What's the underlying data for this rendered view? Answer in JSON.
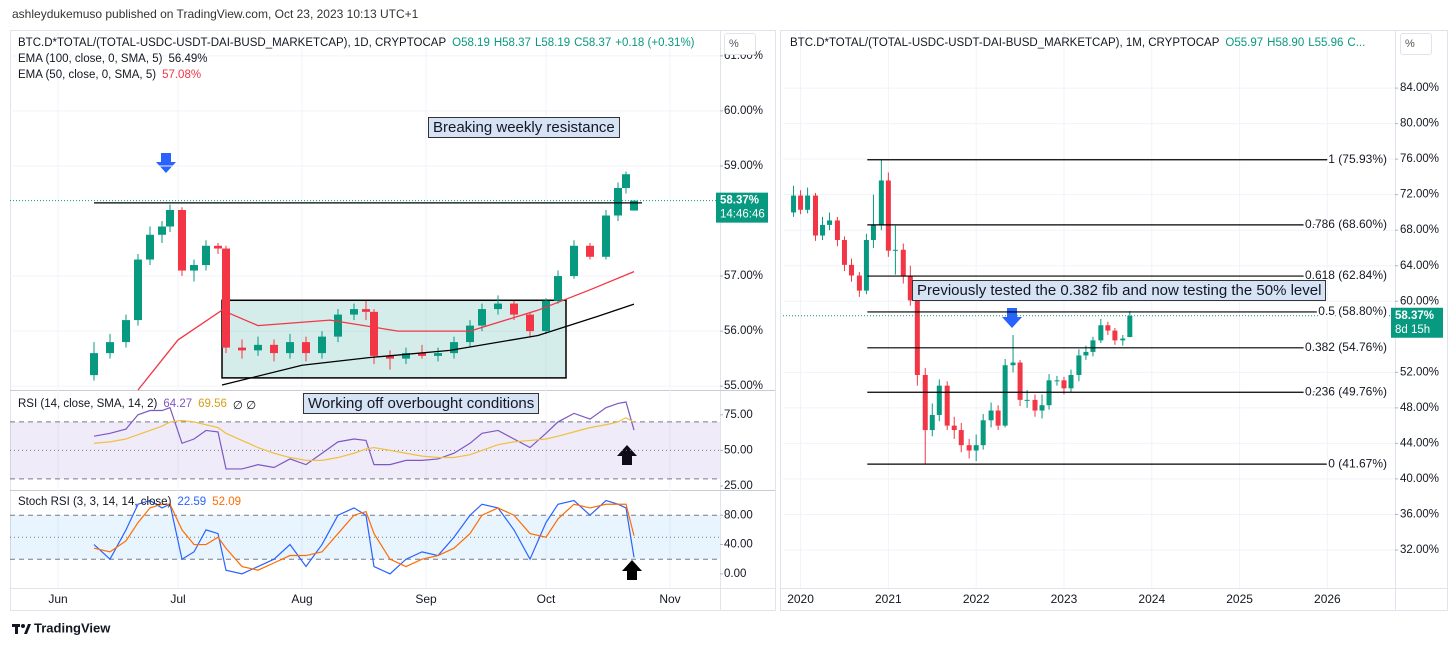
{
  "header": {
    "text": "ashleydukemuso published on TradingView.com, Oct 23, 2023 10:13 UTC+1"
  },
  "footer": {
    "brand": "TradingView"
  },
  "chart_data": [
    {
      "type": "candlestick",
      "symbol": "BTC.D*TOTAL/(TOTAL-USDC-USDT-DAI-BUSD_MARKETCAP), 1D, CRYPTOCAP",
      "quote": [
        "O58.19",
        "H58.37",
        "L58.19",
        "C58.37",
        "+0.18 (+0.31%)"
      ],
      "scale_button": "%",
      "xlim": [
        140,
        317.5
      ],
      "xticks": [
        {
          "value": 152,
          "label": "Jun"
        },
        {
          "value": 182,
          "label": "Jul"
        },
        {
          "value": 213,
          "label": "Aug"
        },
        {
          "value": 244,
          "label": "Sep"
        },
        {
          "value": 274,
          "label": "Oct"
        },
        {
          "value": 305,
          "label": "Nov"
        }
      ],
      "ylim": [
        54.93,
        61.47
      ],
      "yticks": [
        {
          "value": 55,
          "label": "55.00%"
        },
        {
          "value": 56,
          "label": "56.00%"
        },
        {
          "value": 57,
          "label": "57.00%"
        },
        {
          "value": 59,
          "label": "59.00%"
        },
        {
          "value": 60,
          "label": "60.00%"
        },
        {
          "value": 61,
          "label": "61.00%"
        }
      ],
      "up_color": "#089981",
      "down_color": "#f23645",
      "candles": [
        [
          161,
          55.2,
          55.8,
          55.1,
          55.6
        ],
        [
          165,
          55.6,
          55.95,
          55.5,
          55.8
        ],
        [
          169,
          55.8,
          56.3,
          55.7,
          56.2
        ],
        [
          172,
          56.2,
          57.4,
          56.1,
          57.3
        ],
        [
          175,
          57.3,
          57.9,
          57.2,
          57.75
        ],
        [
          178,
          57.75,
          58.0,
          57.6,
          57.9
        ],
        [
          180,
          57.9,
          58.3,
          57.8,
          58.2
        ],
        [
          183,
          58.2,
          58.25,
          57.0,
          57.1
        ],
        [
          186,
          57.1,
          57.3,
          56.9,
          57.2
        ],
        [
          189,
          57.2,
          57.65,
          57.1,
          57.55
        ],
        [
          192,
          57.55,
          57.6,
          57.4,
          57.5
        ],
        [
          194,
          57.5,
          57.55,
          55.6,
          55.7
        ],
        [
          198,
          55.7,
          55.85,
          55.5,
          55.65
        ],
        [
          202,
          55.65,
          55.9,
          55.55,
          55.75
        ],
        [
          206,
          55.75,
          55.85,
          55.45,
          55.6
        ],
        [
          210,
          55.6,
          55.95,
          55.5,
          55.8
        ],
        [
          214,
          55.8,
          55.9,
          55.45,
          55.6
        ],
        [
          218,
          55.6,
          56.0,
          55.5,
          55.9
        ],
        [
          222,
          55.9,
          56.4,
          55.8,
          56.3
        ],
        [
          226,
          56.3,
          56.5,
          56.2,
          56.4
        ],
        [
          229,
          56.4,
          56.55,
          56.2,
          56.35
        ],
        [
          231,
          56.35,
          56.4,
          55.4,
          55.55
        ],
        [
          235,
          55.55,
          55.65,
          55.3,
          55.5
        ],
        [
          239,
          55.5,
          55.7,
          55.4,
          55.6
        ],
        [
          243,
          55.6,
          55.75,
          55.5,
          55.55
        ],
        [
          247,
          55.55,
          55.7,
          55.45,
          55.6
        ],
        [
          251,
          55.6,
          55.9,
          55.5,
          55.8
        ],
        [
          255,
          55.8,
          56.2,
          55.7,
          56.1
        ],
        [
          258,
          56.1,
          56.5,
          56.0,
          56.4
        ],
        [
          262,
          56.4,
          56.65,
          56.3,
          56.5
        ],
        [
          266,
          56.5,
          56.55,
          56.2,
          56.3
        ],
        [
          270,
          56.3,
          56.35,
          55.9,
          56.0
        ],
        [
          274,
          56.0,
          56.6,
          55.95,
          56.55
        ],
        [
          277,
          56.55,
          57.1,
          56.5,
          57.0
        ],
        [
          281,
          57.0,
          57.65,
          56.95,
          57.55
        ],
        [
          285,
          57.55,
          57.6,
          57.3,
          57.35
        ],
        [
          289,
          57.35,
          58.2,
          57.3,
          58.1
        ],
        [
          292,
          58.1,
          58.7,
          58.0,
          58.6
        ],
        [
          294,
          58.6,
          58.9,
          58.5,
          58.85
        ],
        [
          296,
          58.19,
          58.37,
          58.19,
          58.37
        ]
      ],
      "lines": [
        {
          "name": "EMA (100, close, 0, SMA, 5)",
          "last_label": "56.49%",
          "color": "#000000",
          "x": [
            193,
            213,
            230,
            250,
            272,
            287,
            296
          ],
          "values": [
            55.02,
            55.38,
            55.52,
            55.65,
            55.92,
            56.27,
            56.49
          ]
        },
        {
          "name": "EMA (50, close, 0, SMA, 5)",
          "last_label": "57.08%",
          "color": "#f23645",
          "x": [
            172,
            182,
            193,
            202,
            220,
            237,
            255,
            272,
            285,
            296
          ],
          "values": [
            54.93,
            55.84,
            56.38,
            56.1,
            56.2,
            56.0,
            56.0,
            56.38,
            56.75,
            57.08
          ]
        }
      ],
      "hline": {
        "value": 58.33,
        "x": [
          161,
          298
        ]
      },
      "box": {
        "x": [
          193,
          279
        ],
        "y": [
          55.15,
          56.56
        ]
      },
      "last_price": {
        "value": 58.37,
        "label": "58.37%",
        "countdown": "14:46:46"
      },
      "annotations": [
        "Breaking weekly resistance",
        "Working off overbought conditions"
      ],
      "panes": [
        {
          "name": "RSI (14, close, SMA, 14, 2)",
          "extra": "∅ ∅",
          "ylim": [
            23.6,
            90.3
          ],
          "yticks": [
            {
              "value": 25,
              "label": "25.00"
            },
            {
              "value": 50,
              "label": "50.00"
            },
            {
              "value": 75,
              "label": "75.00"
            }
          ],
          "band": [
            30,
            70
          ],
          "midline": 50,
          "band_color": "rgba(126,87,194,0.12)",
          "series": [
            {
              "color": "#7e57c2",
              "values": [
                60,
                62,
                65,
                75,
                78,
                78,
                80,
                55,
                58,
                64,
                63,
                37,
                37,
                40,
                38,
                44,
                40,
                48,
                56,
                58,
                57,
                40,
                40,
                43,
                43,
                44,
                48,
                55,
                62,
                64,
                58,
                52,
                62,
                70,
                76,
                72,
                80,
                83,
                84,
                64.27
              ]
            },
            {
              "color": "#f0c040",
              "values": [
                55,
                56,
                58,
                61,
                64,
                67,
                70,
                71,
                70,
                68,
                66,
                62,
                57,
                52,
                48,
                45,
                43,
                43,
                45,
                48,
                51,
                52,
                50,
                48,
                46,
                45,
                45,
                47,
                50,
                54,
                56,
                57,
                58,
                60,
                63,
                66,
                68,
                70,
                73,
                69.56
              ]
            }
          ]
        },
        {
          "name": "Stoch RSI (3, 3, 14, 14, close)",
          "ylim": [
            -19.3,
            111.7
          ],
          "yticks": [
            {
              "value": 0,
              "label": "0.00"
            },
            {
              "value": 40,
              "label": "40.00"
            },
            {
              "value": 80,
              "label": "80.00"
            }
          ],
          "band": [
            20,
            80
          ],
          "midline": 50,
          "band_color": "rgba(33,150,243,0.1)",
          "series": [
            {
              "color": "#2962ff",
              "values": [
                40,
                20,
                60,
                95,
                100,
                90,
                95,
                20,
                30,
                60,
                55,
                5,
                0,
                10,
                20,
                40,
                10,
                40,
                80,
                90,
                80,
                10,
                0,
                20,
                30,
                25,
                50,
                80,
                95,
                90,
                60,
                20,
                70,
                95,
                100,
                80,
                100,
                95,
                90,
                22.59
              ]
            },
            {
              "color": "#ff6d00",
              "values": [
                35,
                30,
                45,
                70,
                90,
                95,
                95,
                60,
                40,
                40,
                50,
                35,
                10,
                5,
                15,
                25,
                25,
                30,
                55,
                80,
                85,
                55,
                20,
                10,
                20,
                25,
                35,
                55,
                80,
                90,
                80,
                55,
                50,
                75,
                95,
                90,
                95,
                95,
                95,
                52.09
              ]
            }
          ]
        }
      ]
    },
    {
      "type": "candlestick",
      "symbol": "BTC.D*TOTAL/(TOTAL-USDC-USDT-DAI-BUSD_MARKETCAP), 1M, CRYPTOCAP",
      "quote": [
        "O55.97",
        "H58.90",
        "L55.96",
        "C..."
      ],
      "scale_button": "%",
      "xlim": [
        2019.8,
        2026.77
      ],
      "xticks": [
        2020,
        2021,
        2022,
        2023,
        2024,
        2025,
        2026
      ],
      "ylim": [
        27.72,
        90.54
      ],
      "yticks": [
        {
          "value": 32,
          "label": "32.00%"
        },
        {
          "value": 36,
          "label": "36.00%"
        },
        {
          "value": 40,
          "label": "40.00%"
        },
        {
          "value": 44,
          "label": "44.00%"
        },
        {
          "value": 48,
          "label": "48.00%"
        },
        {
          "value": 52,
          "label": "52.00%"
        },
        {
          "value": 60,
          "label": "60.00%"
        },
        {
          "value": 64,
          "label": "64.00%"
        },
        {
          "value": 68,
          "label": "68.00%"
        },
        {
          "value": 72,
          "label": "72.00%"
        },
        {
          "value": 76,
          "label": "76.00%"
        },
        {
          "value": 80,
          "label": "80.00%"
        },
        {
          "value": 84,
          "label": "84.00%"
        }
      ],
      "up_color": "#089981",
      "down_color": "#f23645",
      "candles": [
        [
          2019.92,
          70.0,
          73.0,
          69.5,
          71.9
        ],
        [
          2020.0,
          71.9,
          72.5,
          69.8,
          70.3
        ],
        [
          2020.08,
          70.3,
          72.8,
          69.9,
          71.9
        ],
        [
          2020.17,
          71.9,
          72.2,
          66.8,
          67.4
        ],
        [
          2020.25,
          67.4,
          69.5,
          66.9,
          68.6
        ],
        [
          2020.33,
          68.6,
          70.0,
          68.0,
          69.1
        ],
        [
          2020.42,
          69.1,
          69.5,
          66.2,
          66.9
        ],
        [
          2020.5,
          66.9,
          67.3,
          63.4,
          64.1
        ],
        [
          2020.58,
          64.1,
          64.8,
          62.2,
          62.9
        ],
        [
          2020.67,
          62.9,
          63.3,
          60.5,
          61.2
        ],
        [
          2020.75,
          61.2,
          67.6,
          60.8,
          66.9
        ],
        [
          2020.83,
          66.9,
          72.0,
          66.0,
          68.6
        ],
        [
          2020.92,
          68.6,
          75.93,
          68.0,
          73.6
        ],
        [
          2021.0,
          73.6,
          74.5,
          65.0,
          65.7
        ],
        [
          2021.08,
          65.7,
          68.5,
          63.0,
          65.8
        ],
        [
          2021.17,
          65.8,
          66.5,
          62.0,
          62.9
        ],
        [
          2021.25,
          62.9,
          64.0,
          59.5,
          60.1
        ],
        [
          2021.33,
          60.1,
          61.0,
          50.5,
          51.7
        ],
        [
          2021.42,
          51.7,
          52.5,
          41.67,
          45.5
        ],
        [
          2021.5,
          45.5,
          48.5,
          44.8,
          47.2
        ],
        [
          2021.58,
          47.2,
          51.2,
          46.5,
          50.5
        ],
        [
          2021.67,
          50.5,
          51.0,
          45.5,
          46.0
        ],
        [
          2021.75,
          46.0,
          47.0,
          44.5,
          45.5
        ],
        [
          2021.83,
          45.5,
          46.3,
          43.0,
          43.8
        ],
        [
          2021.92,
          43.8,
          44.5,
          42.3,
          43.2
        ],
        [
          2022.0,
          43.2,
          45.0,
          42.0,
          43.8
        ],
        [
          2022.08,
          43.8,
          47.3,
          43.3,
          46.6
        ],
        [
          2022.17,
          46.6,
          48.6,
          45.8,
          47.7
        ],
        [
          2022.25,
          47.7,
          48.3,
          45.5,
          46.0
        ],
        [
          2022.33,
          46.0,
          53.5,
          45.8,
          52.8
        ],
        [
          2022.42,
          52.8,
          56.2,
          52.0,
          53.1
        ],
        [
          2022.5,
          53.1,
          53.4,
          48.2,
          48.9
        ],
        [
          2022.58,
          48.9,
          50.0,
          48.0,
          48.9
        ],
        [
          2022.67,
          48.9,
          49.5,
          47.0,
          47.7
        ],
        [
          2022.75,
          47.7,
          49.5,
          46.8,
          48.3
        ],
        [
          2022.83,
          48.3,
          51.8,
          47.8,
          51.1
        ],
        [
          2022.92,
          51.1,
          51.6,
          50.5,
          51.1
        ],
        [
          2023.0,
          51.1,
          51.5,
          49.5,
          50.2
        ],
        [
          2023.08,
          50.2,
          52.3,
          49.8,
          51.7
        ],
        [
          2023.17,
          51.7,
          54.6,
          51.0,
          53.9
        ],
        [
          2023.25,
          53.9,
          55.0,
          53.4,
          54.3
        ],
        [
          2023.33,
          54.3,
          56.0,
          53.8,
          55.6
        ],
        [
          2023.42,
          55.6,
          58.0,
          55.3,
          57.3
        ],
        [
          2023.5,
          57.3,
          57.7,
          56.2,
          56.7
        ],
        [
          2023.58,
          56.7,
          57.0,
          55.1,
          55.6
        ],
        [
          2023.67,
          55.6,
          56.2,
          55.0,
          55.8
        ],
        [
          2023.75,
          55.97,
          58.9,
          55.96,
          58.37
        ]
      ],
      "fib_x": [
        2020.76,
        2026.0
      ],
      "fib_levels": [
        {
          "value": 75.93,
          "label": "1 (75.93%)"
        },
        {
          "value": 68.6,
          "label": "0.786 (68.60%)"
        },
        {
          "value": 62.84,
          "label": "0.618 (62.84%)"
        },
        {
          "value": 58.8,
          "label": "0.5 (58.80%)"
        },
        {
          "value": 54.76,
          "label": "0.382 (54.76%)"
        },
        {
          "value": 49.76,
          "label": "0.236 (49.76%)"
        },
        {
          "value": 41.67,
          "label": "0 (41.67%)"
        }
      ],
      "last_price": {
        "value": 58.37,
        "label": "58.37%",
        "countdown": "8d 15h"
      },
      "annotations": [
        "Previously tested the 0.382 fib and now testing the 50% level"
      ]
    }
  ]
}
